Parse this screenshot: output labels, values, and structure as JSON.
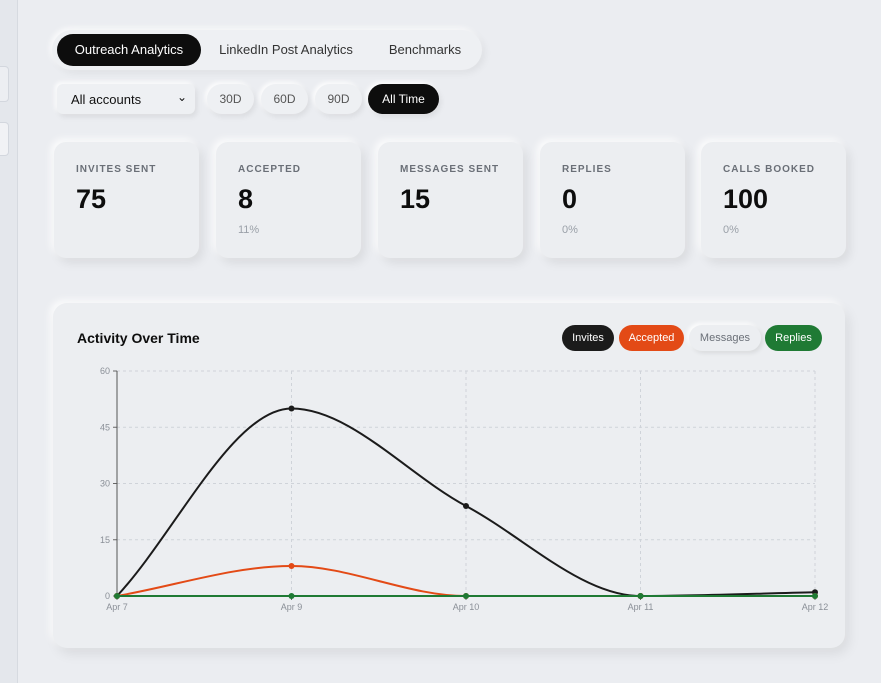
{
  "tabs": [
    {
      "label": "Outreach Analytics",
      "active": true
    },
    {
      "label": "LinkedIn Post Analytics",
      "active": false
    },
    {
      "label": "Benchmarks",
      "active": false
    }
  ],
  "filters": {
    "account_select": "All accounts",
    "ranges": [
      {
        "label": "30D",
        "active": false
      },
      {
        "label": "60D",
        "active": false
      },
      {
        "label": "90D",
        "active": false
      },
      {
        "label": "All Time",
        "active": true
      }
    ]
  },
  "stats": [
    {
      "title": "INVITES SENT",
      "value": "75",
      "sub": ""
    },
    {
      "title": "ACCEPTED",
      "value": "8",
      "sub": "11%"
    },
    {
      "title": "MESSAGES SENT",
      "value": "15",
      "sub": ""
    },
    {
      "title": "REPLIES",
      "value": "0",
      "sub": "0%"
    },
    {
      "title": "CALLS BOOKED",
      "value": "100",
      "sub": "0%"
    }
  ],
  "chart": {
    "title": "Activity Over Time",
    "legend": [
      "Invites",
      "Accepted",
      "Messages",
      "Replies"
    ]
  },
  "chart_data": {
    "type": "line",
    "title": "Activity Over Time",
    "categories": [
      "Apr 7",
      "Apr 9",
      "Apr 10",
      "Apr 11",
      "Apr 12"
    ],
    "ylim": [
      0,
      60
    ],
    "yticks": [
      0,
      15,
      30,
      45,
      60
    ],
    "grid": true,
    "legend_position": "top-right",
    "series": [
      {
        "name": "Invites",
        "color": "#1b1b1b",
        "values": [
          0,
          50,
          24,
          0,
          1
        ]
      },
      {
        "name": "Accepted",
        "color": "#e34a16",
        "values": [
          0,
          8,
          0,
          0,
          0
        ]
      },
      {
        "name": "Replies",
        "color": "#1f7a34",
        "values": [
          0,
          0,
          0,
          0,
          0
        ]
      }
    ]
  }
}
